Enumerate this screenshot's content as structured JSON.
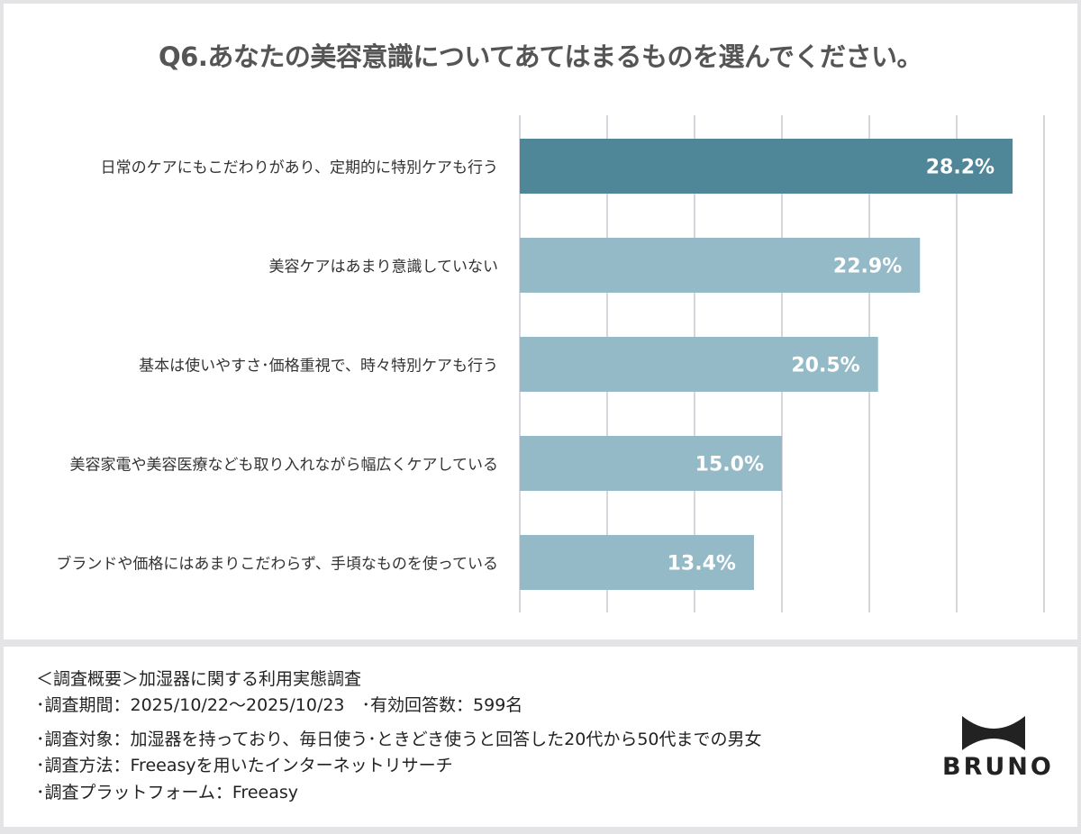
{
  "chart_data": {
    "type": "bar",
    "orientation": "horizontal",
    "title": "Q6.あなたの美容意識についてあてはまるものを選んでください。",
    "categories": [
      "日常のケアにもこだわりがあり、定期的に特別ケアも行う",
      "美容ケアはあまり意識していない",
      "基本は使いやすさ･価格重視で、時々特別ケアも行う",
      "美容家電や美容医療なども取り入れながら幅広くケアしている",
      "ブランドや価格にはあまりこだわらず、手頃なものを使っている"
    ],
    "values": [
      28.2,
      22.9,
      20.5,
      15.0,
      13.4
    ],
    "labels": [
      "28.2%",
      "22.9%",
      "20.5%",
      "15.0%",
      "13.4%"
    ],
    "unit": "%",
    "xlim": [
      0,
      30
    ],
    "grid_step": 5,
    "grid": true,
    "colors": {
      "highlight": "#4f8799",
      "default": "#93bac6",
      "grid": "#d6d6dc"
    }
  },
  "footer": {
    "lines": [
      "＜調査概要＞加湿器に関する利用実態調査",
      "･調査期間：2025/10/22～2025/10/23　･有効回答数：599名",
      "･調査対象：加湿器を持っており、毎日使う･ときどき使うと回答した20代から50代までの男女",
      "･調査方法：Freeasyを用いたインターネットリサーチ",
      "･調査プラットフォーム：Freeasy"
    ]
  },
  "logo": {
    "text": "BRUNO"
  }
}
